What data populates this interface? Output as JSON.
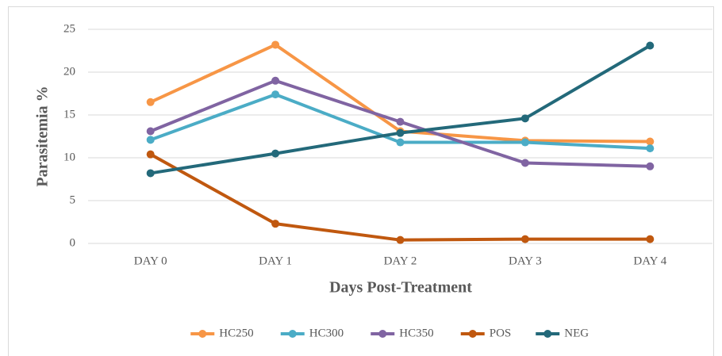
{
  "chart_data": {
    "type": "line",
    "x_label": "Days Post-Treatment",
    "y_label": "Parasitemia %",
    "categories": [
      "DAY 0",
      "DAY 1",
      "DAY 2",
      "DAY 3",
      "DAY 4"
    ],
    "series": [
      {
        "name": "HC250",
        "color": "#f79646",
        "values": [
          16.5,
          23.2,
          13.1,
          12.0,
          11.9
        ]
      },
      {
        "name": "HC300",
        "color": "#4bacc6",
        "values": [
          12.1,
          17.4,
          11.8,
          11.8,
          11.1
        ]
      },
      {
        "name": "HC350",
        "color": "#8064a2",
        "values": [
          13.1,
          19.0,
          14.2,
          9.4,
          9.0
        ]
      },
      {
        "name": "POS",
        "color": "#c0580f",
        "values": [
          10.4,
          2.3,
          0.4,
          0.5,
          0.5
        ]
      },
      {
        "name": "NEG",
        "color": "#23697a",
        "values": [
          8.2,
          10.5,
          12.9,
          14.6,
          23.1
        ]
      }
    ],
    "ylim": [
      0,
      25
    ],
    "yticks": [
      0,
      5,
      10,
      15,
      20,
      25
    ],
    "grid": true,
    "legend": "bottom"
  }
}
